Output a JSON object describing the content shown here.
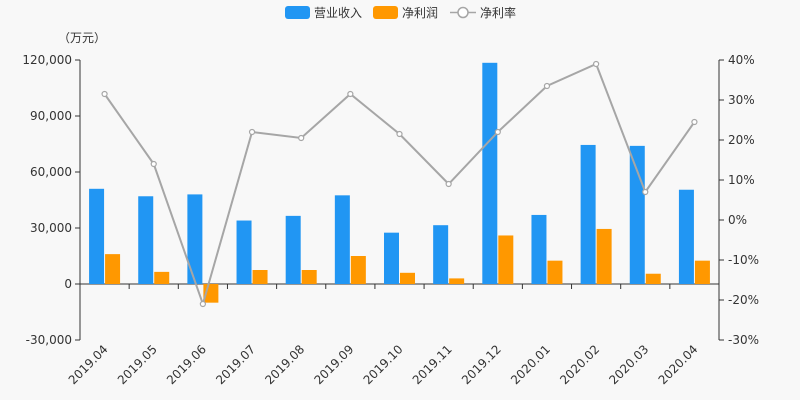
{
  "chart_data": {
    "type": "bar",
    "categories": [
      "2019.04",
      "2019.05",
      "2019.06",
      "2019.07",
      "2019.08",
      "2019.09",
      "2019.10",
      "2019.11",
      "2019.12",
      "2020.01",
      "2020.02",
      "2020.03",
      "2020.04"
    ],
    "series": [
      {
        "name": "营业收入",
        "kind": "bar",
        "axis": "left",
        "color": "#2196f3",
        "values": [
          51000,
          47000,
          48000,
          34000,
          36500,
          47500,
          27500,
          31500,
          118500,
          37000,
          74500,
          74000,
          50500
        ]
      },
      {
        "name": "净利润",
        "kind": "bar",
        "axis": "left",
        "color": "#ff9800",
        "values": [
          16000,
          6500,
          -10000,
          7500,
          7500,
          15000,
          6000,
          3000,
          26000,
          12500,
          29500,
          5500,
          12500
        ]
      },
      {
        "name": "净利率",
        "kind": "line",
        "axis": "right",
        "color": "#a6a6a6",
        "values": [
          31.5,
          14,
          -21,
          22,
          20.5,
          31.5,
          21.5,
          9,
          22,
          33.5,
          39,
          7,
          24.5
        ]
      }
    ],
    "left_axis": {
      "unit": "（万元）",
      "ylim": [
        -30000,
        120000
      ],
      "ticks": [
        120000,
        90000,
        60000,
        30000,
        0,
        -30000
      ],
      "tick_labels": [
        "120,000",
        "90,000",
        "60,000",
        "30,000",
        "0",
        "-30,000"
      ]
    },
    "right_axis": {
      "ylim": [
        -30,
        40
      ],
      "ticks": [
        40,
        30,
        20,
        10,
        0,
        -10,
        -20,
        -30
      ],
      "tick_labels": [
        "40%",
        "30%",
        "20%",
        "10%",
        "0%",
        "-10%",
        "-20%",
        "-30%"
      ]
    },
    "legend": {
      "position": "top-center",
      "items": [
        "营业收入",
        "净利润",
        "净利率"
      ]
    },
    "grid": false
  }
}
